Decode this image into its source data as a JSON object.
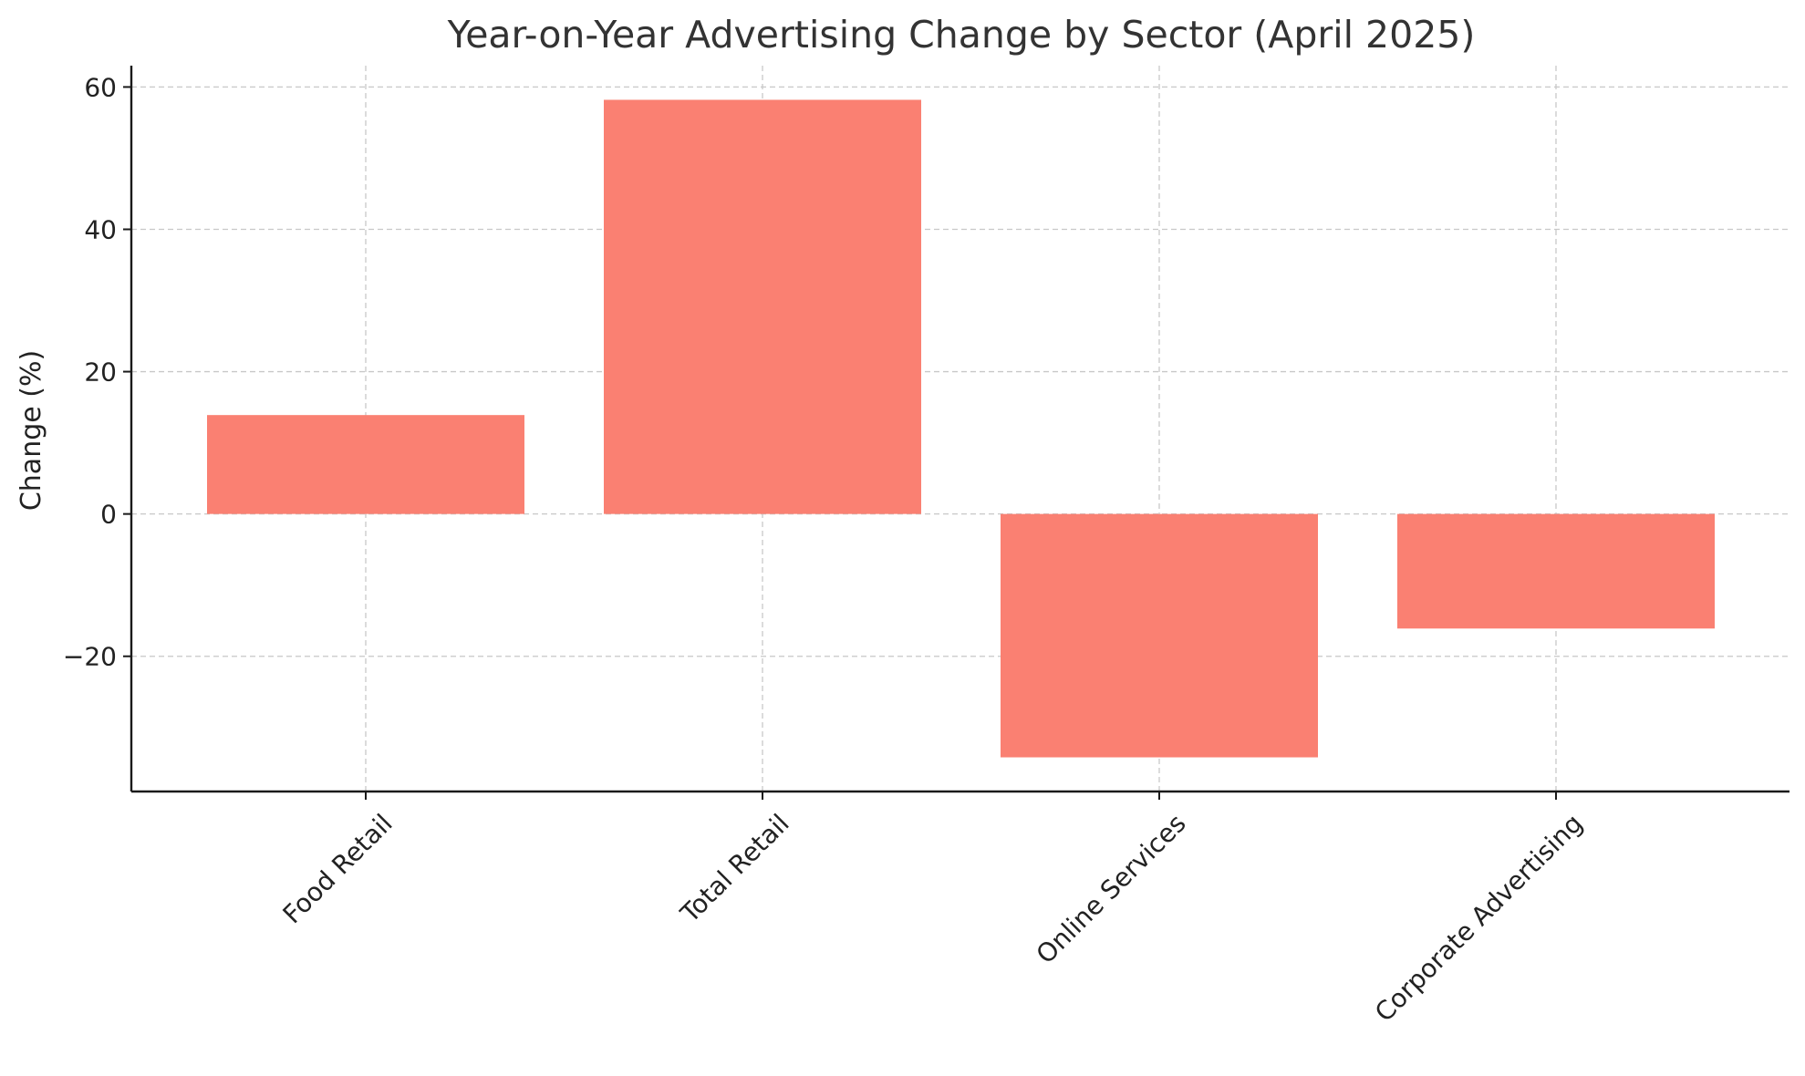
{
  "chart_data": {
    "type": "bar",
    "title": "Year-on-Year Advertising Change by Sector (April 2025)",
    "xlabel": "",
    "ylabel": "Change (%)",
    "categories": [
      "Food Retail",
      "Total Retail",
      "Online Services",
      "Corporate Advertising"
    ],
    "values": [
      13.9,
      58.2,
      -34.2,
      -16.1
    ],
    "ylim": [
      -39,
      63
    ],
    "yticks": [
      -20,
      0,
      20,
      40,
      60
    ],
    "ytick_labels": [
      "−20",
      "0",
      "20",
      "40",
      "60"
    ],
    "grid": true,
    "bar_color": "#FA8072"
  }
}
